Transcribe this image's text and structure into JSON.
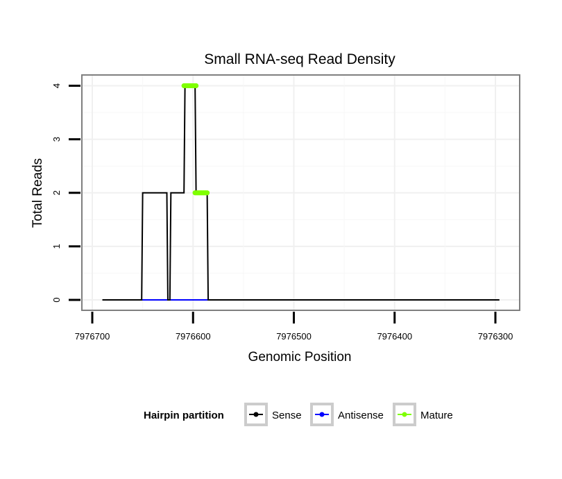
{
  "chart_data": {
    "type": "line",
    "title": "Small RNA-seq Read Density",
    "xlabel": "Genomic Position",
    "ylabel": "Total Reads",
    "xlim": [
      7976720,
      7976290
    ],
    "ylim": [
      -0.2,
      4.2
    ],
    "x_reversed": true,
    "x_ticks": [
      7976700,
      7976600,
      7976500,
      7976400,
      7976300
    ],
    "x_tick_labels": [
      "7976700",
      "7976600",
      "7976500",
      "7976400",
      "7976300"
    ],
    "y_ticks": [
      0,
      1,
      2,
      3,
      4
    ],
    "y_tick_labels": [
      "0",
      "1",
      "2",
      "3",
      "4"
    ],
    "grid": true,
    "legend": {
      "title": "Hairpin partition",
      "position": "bottom",
      "entries": [
        {
          "label": "Sense",
          "color": "#000000"
        },
        {
          "label": "Antisense",
          "color": "#0000ff"
        },
        {
          "label": "Mature",
          "color": "#7fff00"
        }
      ]
    },
    "series": [
      {
        "name": "Sense",
        "color": "#000000",
        "x": [
          7976690,
          7976651,
          7976650,
          7976626,
          7976625,
          7976623,
          7976622,
          7976609,
          7976608,
          7976598,
          7976597,
          7976586,
          7976585,
          7976296
        ],
        "y": [
          0,
          0,
          2,
          2,
          0,
          0,
          2,
          2,
          4,
          4,
          2,
          2,
          0,
          0
        ]
      },
      {
        "name": "Antisense",
        "color": "#0000ff",
        "x": [
          7976651,
          7976585
        ],
        "y": [
          0,
          0
        ]
      },
      {
        "name": "Mature",
        "color": "#7fff00",
        "segments": [
          {
            "x": [
              7976609,
              7976597
            ],
            "y": [
              4,
              4
            ]
          },
          {
            "x": [
              7976598,
              7976586
            ],
            "y": [
              2,
              2
            ]
          }
        ]
      }
    ]
  }
}
